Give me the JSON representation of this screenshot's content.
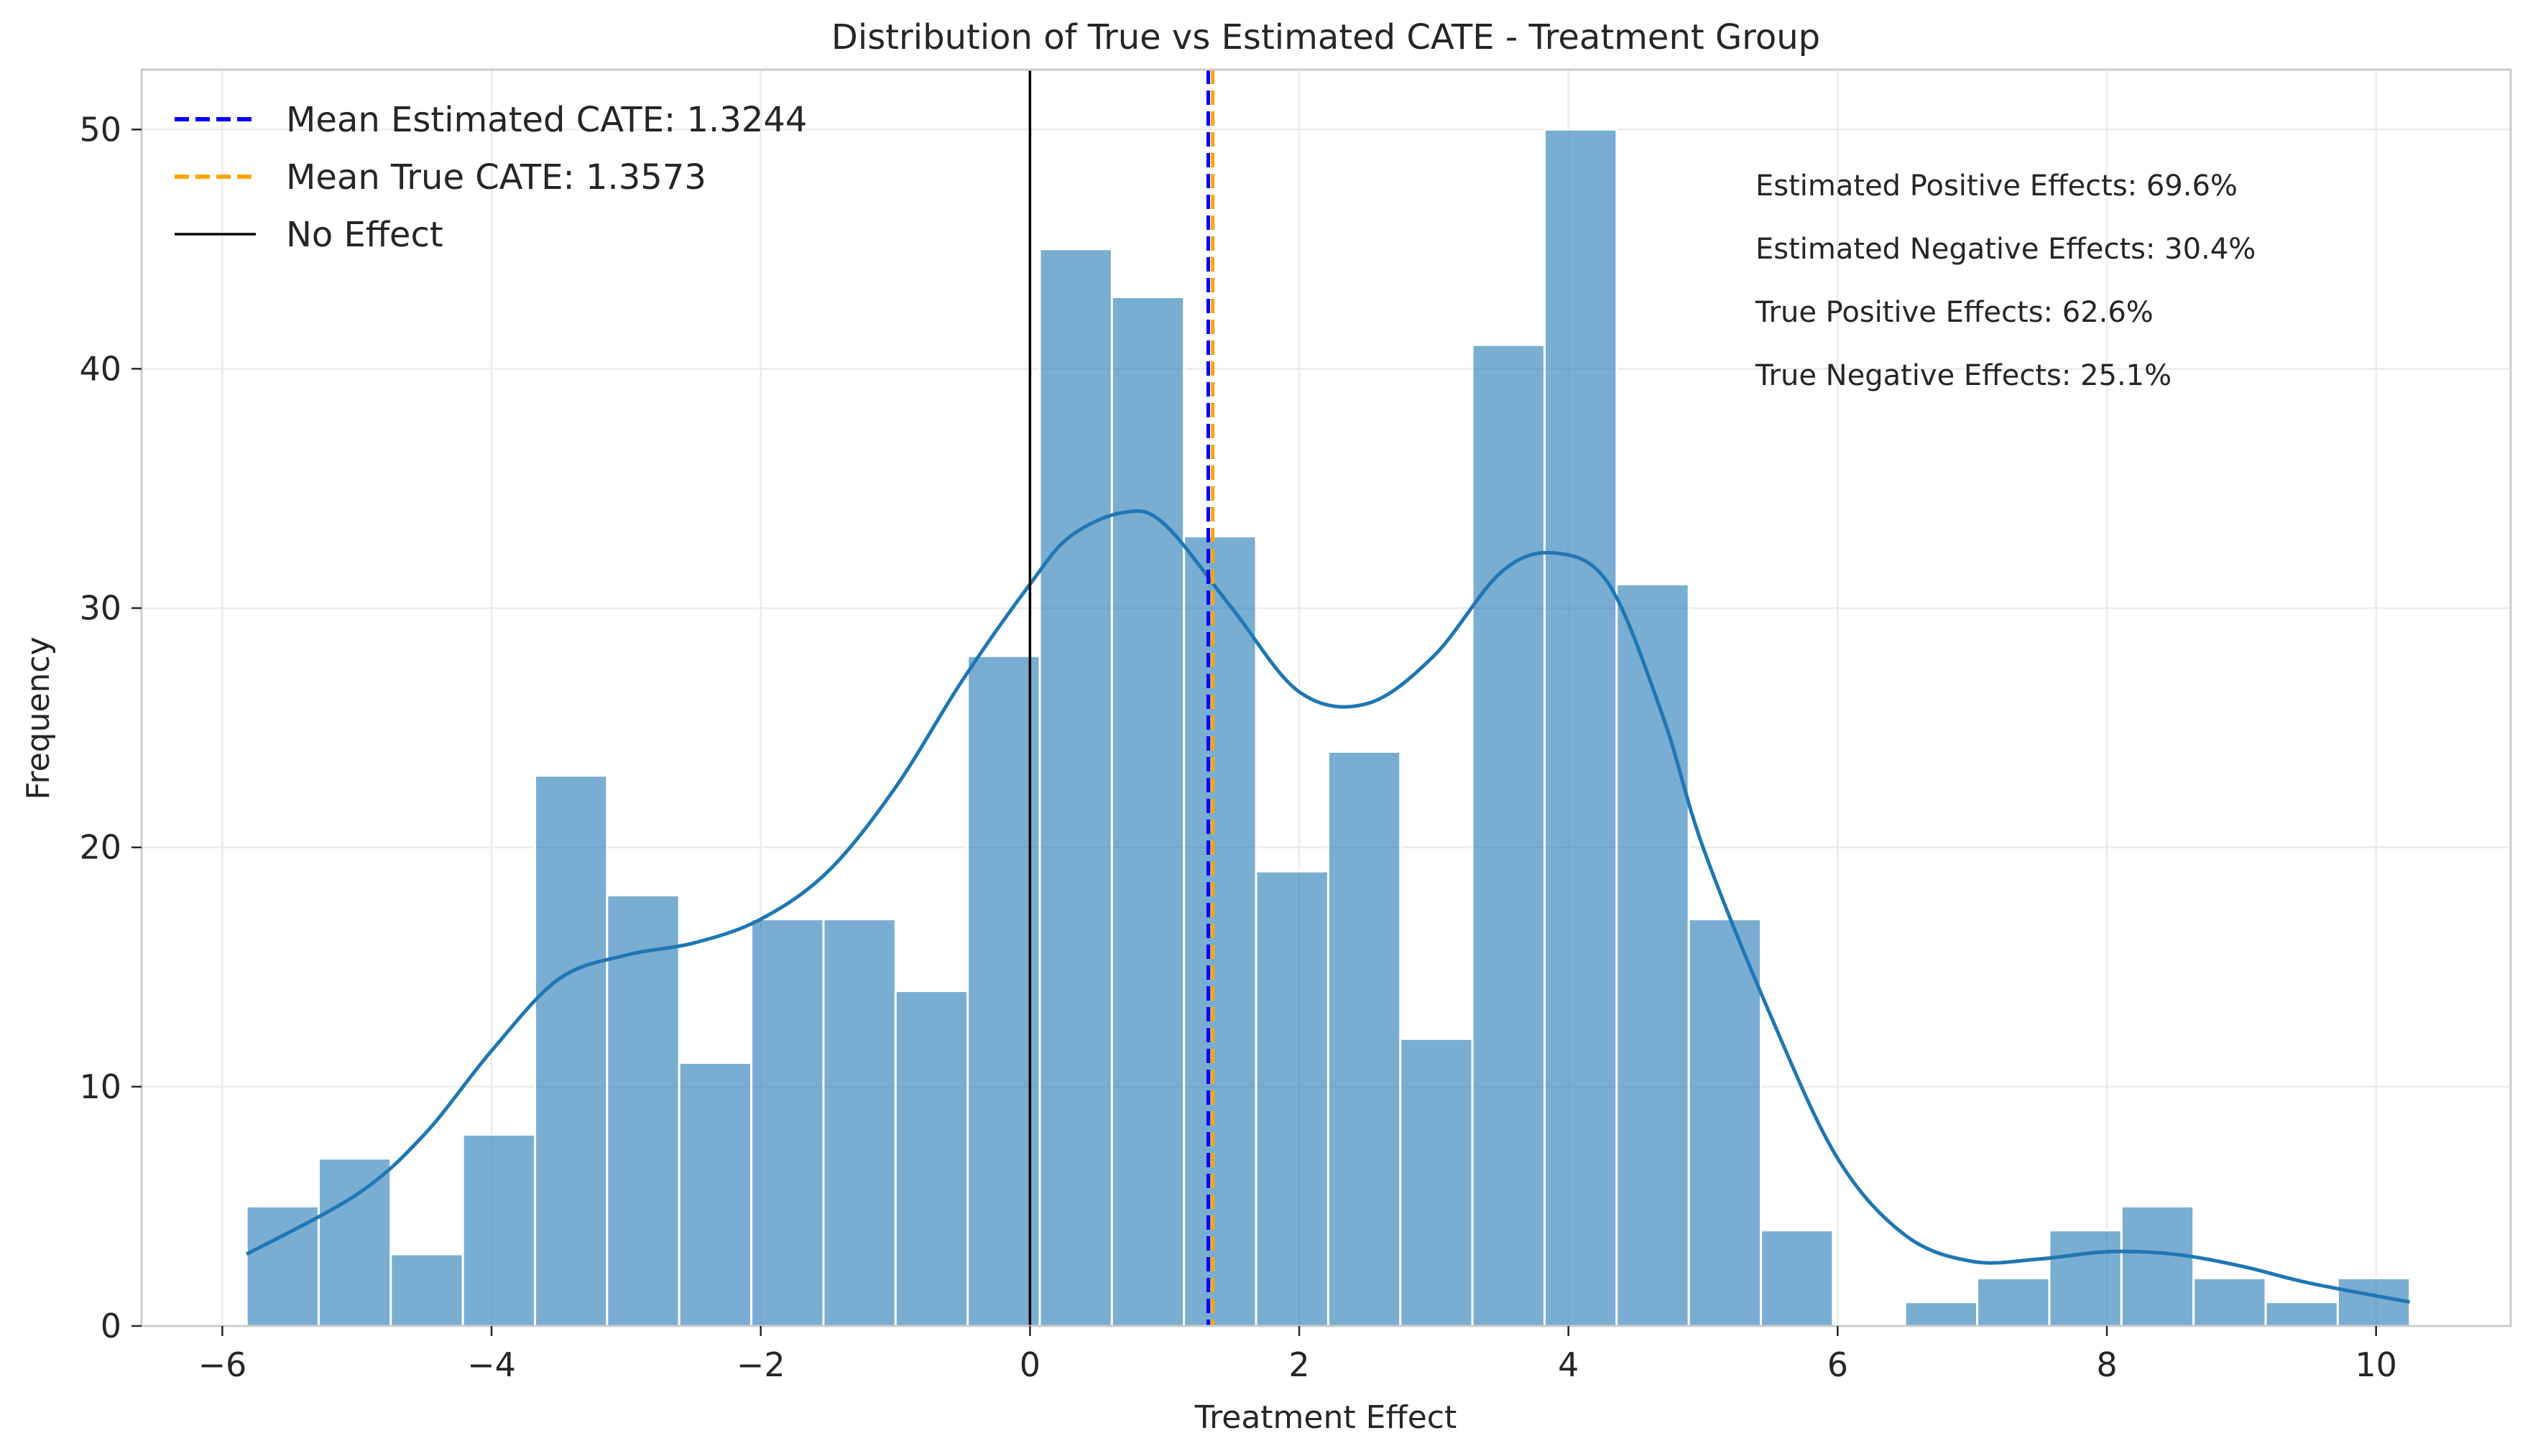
{
  "chart_data": {
    "type": "histogram",
    "title": "Distribution of True vs Estimated CATE - Treatment Group",
    "xlabel": "Treatment Effect",
    "ylabel": "Frequency",
    "xlim": [
      -6.6,
      11.0
    ],
    "ylim": [
      0,
      52.5
    ],
    "xticks": [
      -6,
      -4,
      -2,
      0,
      2,
      4,
      6,
      8,
      10
    ],
    "xtick_labels": [
      "−6",
      "−4",
      "−2",
      "0",
      "2",
      "4",
      "6",
      "8",
      "10"
    ],
    "yticks": [
      0,
      10,
      20,
      30,
      40,
      50
    ],
    "ytick_labels": [
      "0",
      "10",
      "20",
      "30",
      "40",
      "50"
    ],
    "grid": true,
    "bins": {
      "start": -5.82,
      "width": 0.5357,
      "counts": [
        5,
        7,
        3,
        8,
        23,
        18,
        11,
        17,
        17,
        14,
        28,
        45,
        43,
        33,
        19,
        24,
        12,
        41,
        50,
        31,
        17,
        4,
        0,
        1,
        2,
        4,
        5,
        2,
        1,
        2
      ],
      "color": "#1f77b4",
      "opacity": 0.6
    },
    "kde": {
      "color": "#1f77b4",
      "x": [
        -5.82,
        -5.0,
        -4.5,
        -4.0,
        -3.5,
        -3.0,
        -2.5,
        -2.0,
        -1.5,
        -1.0,
        -0.5,
        0.0,
        0.3,
        0.7,
        1.0,
        1.5,
        2.0,
        2.5,
        3.0,
        3.5,
        3.9,
        4.3,
        4.7,
        5.0,
        5.5,
        6.0,
        6.5,
        7.0,
        7.5,
        8.0,
        8.5,
        9.0,
        9.5,
        10.25
      ],
      "y": [
        3.0,
        5.5,
        8.0,
        11.5,
        14.5,
        15.5,
        16.0,
        17.0,
        19.0,
        22.5,
        27.0,
        31.0,
        33.0,
        34.0,
        33.5,
        30.0,
        26.5,
        26.0,
        28.0,
        31.5,
        32.3,
        31.0,
        25.5,
        20.0,
        13.0,
        7.0,
        3.8,
        2.7,
        2.8,
        3.1,
        3.0,
        2.5,
        1.8,
        1.0
      ]
    },
    "reference_lines": [
      {
        "name": "Mean Estimated CATE: 1.3244",
        "x": 1.3244,
        "color": "#0000ff",
        "style": "dashed"
      },
      {
        "name": "Mean True CATE: 1.3573",
        "x": 1.3573,
        "color": "#ffa500",
        "style": "dashed"
      },
      {
        "name": "No Effect",
        "x": 0,
        "color": "#000000",
        "style": "solid"
      }
    ],
    "legend_position": "top-left",
    "annotations": [
      "Estimated Positive Effects: 69.6%",
      "Estimated Negative Effects: 30.4%",
      "True Positive Effects: 62.6%",
      "True Negative Effects: 25.1%"
    ]
  }
}
